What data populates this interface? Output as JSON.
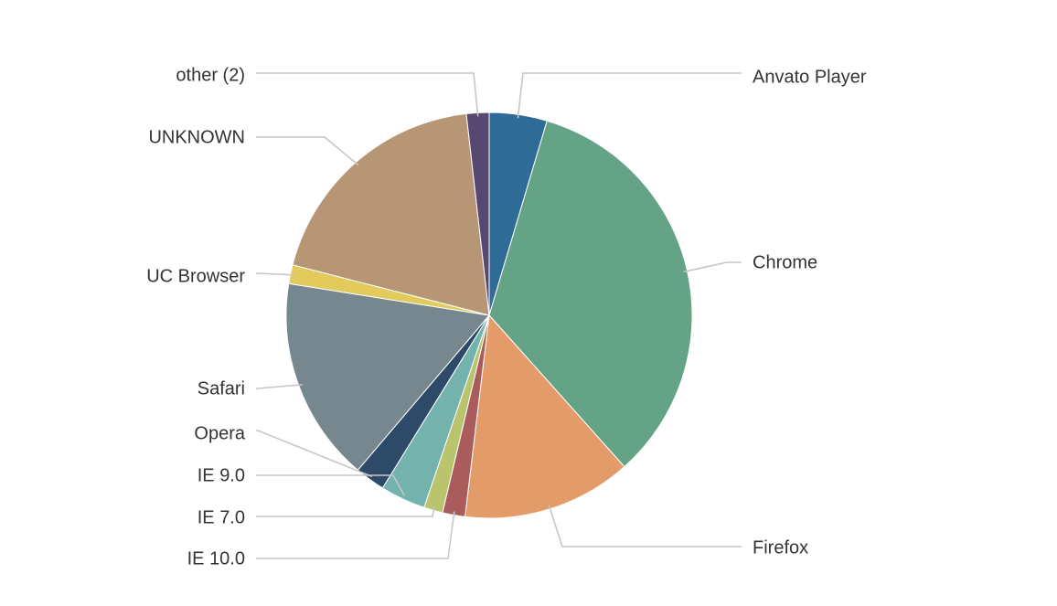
{
  "chart_data": {
    "type": "pie",
    "title": "",
    "slices": [
      {
        "label": "Anvato Player",
        "value": 4.6,
        "color": "#2e6b96"
      },
      {
        "label": "Chrome",
        "value": 33.8,
        "color": "#64a386"
      },
      {
        "label": "Firefox",
        "value": 13.5,
        "color": "#e39c69"
      },
      {
        "label": "IE 10.0",
        "value": 1.8,
        "color": "#aa5c5c"
      },
      {
        "label": "IE 7.0",
        "value": 1.5,
        "color": "#b9c46c"
      },
      {
        "label": "IE 9.0",
        "value": 3.6,
        "color": "#74b2ad"
      },
      {
        "label": "Opera",
        "value": 2.4,
        "color": "#2e4a69"
      },
      {
        "label": "Safari",
        "value": 16.3,
        "color": "#77878f"
      },
      {
        "label": "UC Browser",
        "value": 1.5,
        "color": "#e3ca5c"
      },
      {
        "label": "UNKNOWN",
        "value": 19.2,
        "color": "#b69674"
      },
      {
        "label": "other (2)",
        "value": 1.8,
        "color": "#564870"
      }
    ],
    "legend": "none"
  }
}
